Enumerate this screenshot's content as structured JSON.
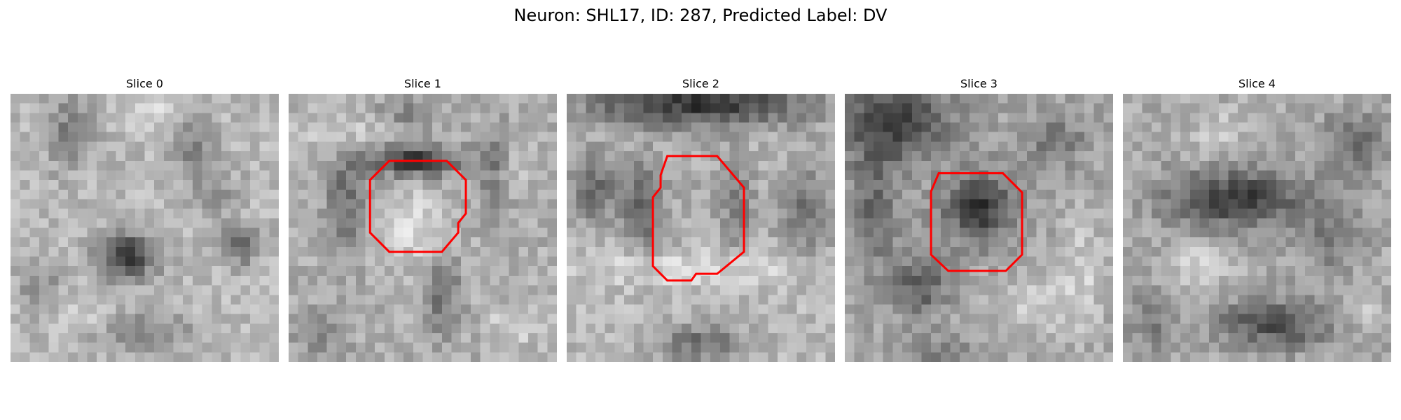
{
  "figure": {
    "title": "Neuron: SHL17, ID: 287, Predicted Label: DV",
    "colormap": "grayscale",
    "outline_color": "#ff0000"
  },
  "panels": [
    {
      "title": "Slice 0",
      "has_outline": false
    },
    {
      "title": "Slice 1",
      "has_outline": true
    },
    {
      "title": "Slice 2",
      "has_outline": true
    },
    {
      "title": "Slice 3",
      "has_outline": true
    },
    {
      "title": "Slice 4",
      "has_outline": false
    }
  ]
}
